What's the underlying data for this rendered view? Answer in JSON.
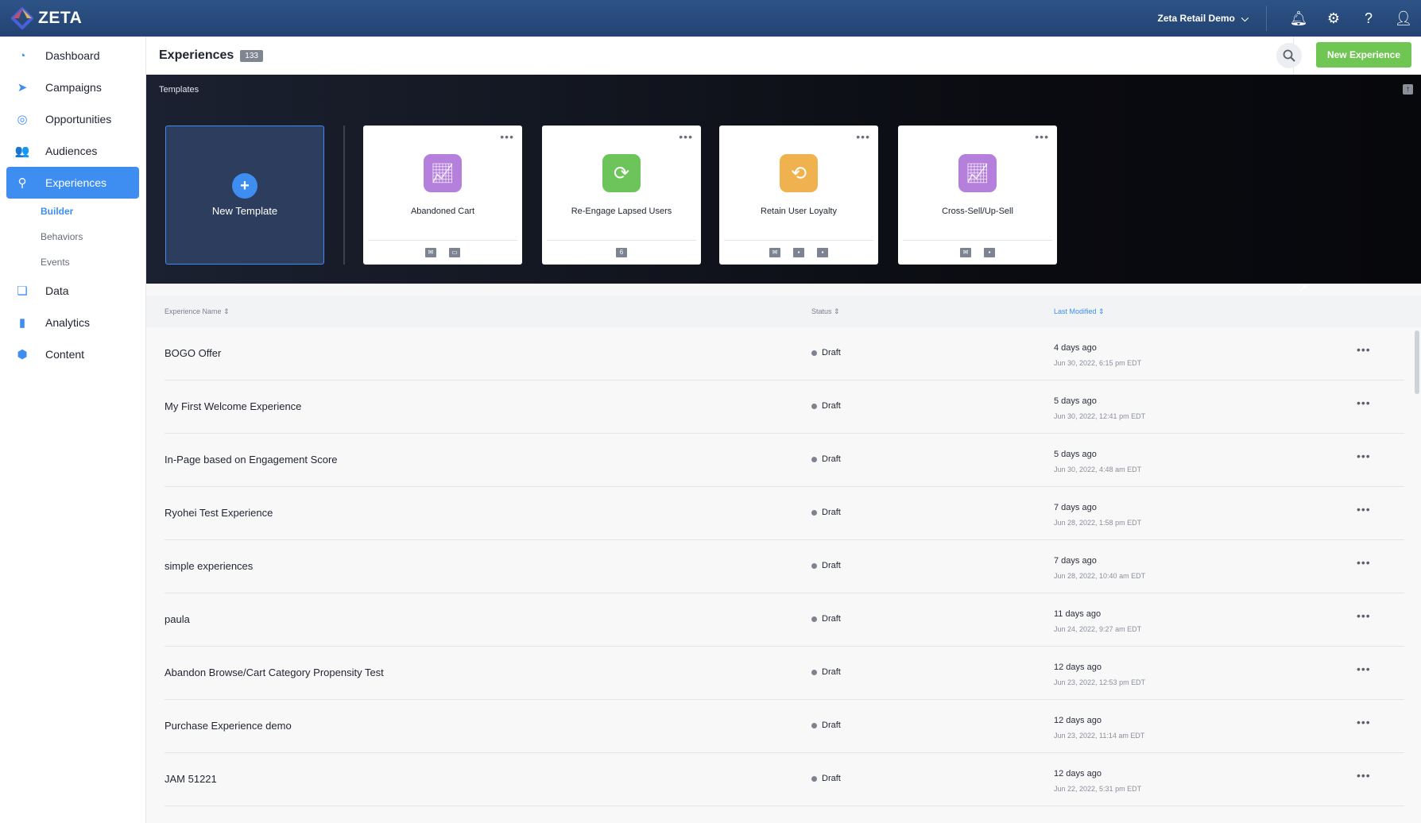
{
  "topbar": {
    "brand": "ZETA",
    "account": "Zeta Retail Demo"
  },
  "sidebar": {
    "items": [
      {
        "label": "Dashboard",
        "icon": "dashboard-icon",
        "glyph": "◔"
      },
      {
        "label": "Campaigns",
        "icon": "paper-plane-icon",
        "glyph": "➤"
      },
      {
        "label": "Opportunities",
        "icon": "target-icon",
        "glyph": "◎"
      },
      {
        "label": "Audiences",
        "icon": "users-icon",
        "glyph": "👥"
      },
      {
        "label": "Experiences",
        "icon": "hierarchy-icon",
        "glyph": "⚲",
        "active": true
      },
      {
        "label": "Data",
        "icon": "files-icon",
        "glyph": "❏"
      },
      {
        "label": "Analytics",
        "icon": "bar-chart-icon",
        "glyph": "▮"
      },
      {
        "label": "Content",
        "icon": "cube-icon",
        "glyph": "⬢"
      }
    ],
    "subitems": [
      {
        "label": "Builder",
        "active": true
      },
      {
        "label": "Behaviors"
      },
      {
        "label": "Events"
      }
    ]
  },
  "header": {
    "title": "Experiences",
    "count": "133",
    "new_button": "New Experience"
  },
  "templates": {
    "label": "Templates",
    "new_label": "New Template",
    "cards": [
      {
        "name": "Abandoned Cart",
        "color": "#b57fdc",
        "icon": "chart-icon",
        "channels": [
          "email-icon",
          "chat-icon"
        ]
      },
      {
        "name": "Re-Engage Lapsed Users",
        "color": "#6cc45a",
        "icon": "refresh-icon",
        "channels": [
          "badge-6"
        ]
      },
      {
        "name": "Retain User Loyalty",
        "color": "#f0b24e",
        "icon": "user-cycle-icon",
        "channels": [
          "email-icon",
          "contact-card-icon",
          "contact-list-icon"
        ]
      },
      {
        "name": "Cross-Sell/Up-Sell",
        "color": "#b57fdc",
        "icon": "chart-icon",
        "channels": [
          "email-icon",
          "contact-card-icon"
        ]
      }
    ],
    "badge_value": "6"
  },
  "table": {
    "columns": [
      "Experience Name",
      "Status",
      "Last Modified"
    ],
    "sorted_column": "Last Modified",
    "rows": [
      {
        "name": "BOGO Offer",
        "status": "Draft",
        "relative": "4 days ago",
        "date": "Jun 30, 2022, 6:15 pm EDT"
      },
      {
        "name": "My First Welcome Experience",
        "status": "Draft",
        "relative": "5 days ago",
        "date": "Jun 30, 2022, 12:41 pm EDT"
      },
      {
        "name": "In-Page based on Engagement Score",
        "status": "Draft",
        "relative": "5 days ago",
        "date": "Jun 30, 2022, 4:48 am EDT"
      },
      {
        "name": "Ryohei Test Experience",
        "status": "Draft",
        "relative": "7 days ago",
        "date": "Jun 28, 2022, 1:58 pm EDT"
      },
      {
        "name": "simple experiences",
        "status": "Draft",
        "relative": "7 days ago",
        "date": "Jun 28, 2022, 10:40 am EDT"
      },
      {
        "name": "paula",
        "status": "Draft",
        "relative": "11 days ago",
        "date": "Jun 24, 2022, 9:27 am EDT"
      },
      {
        "name": "Abandon Browse/Cart Category Propensity Test",
        "status": "Draft",
        "relative": "12 days ago",
        "date": "Jun 23, 2022, 12:53 pm EDT"
      },
      {
        "name": "Purchase Experience demo",
        "status": "Draft",
        "relative": "12 days ago",
        "date": "Jun 23, 2022, 11:14 am EDT"
      },
      {
        "name": "JAM 51221",
        "status": "Draft",
        "relative": "12 days ago",
        "date": "Jun 22, 2022, 5:31 pm EDT"
      }
    ]
  },
  "colors": {
    "accent": "#3d8ef0",
    "primary_button": "#6fc653",
    "topbar": "#2a4c7f"
  }
}
